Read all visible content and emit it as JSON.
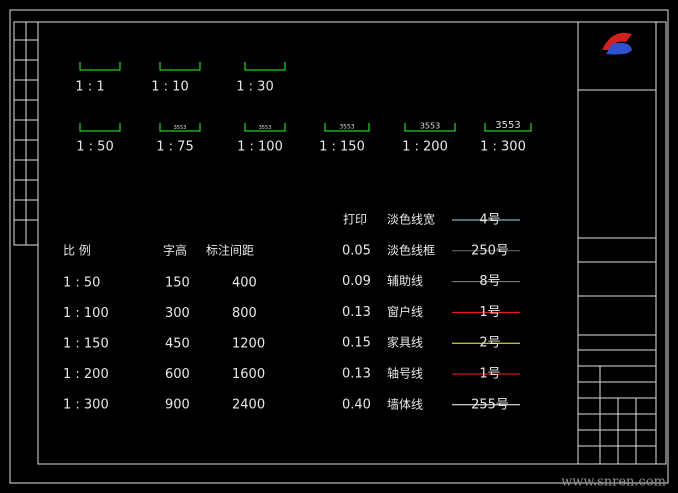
{
  "scales": {
    "row1": [
      "1 : 1",
      "1 : 10",
      "1 : 30"
    ],
    "row2": [
      "1 : 50",
      "1 : 75",
      "1 : 100",
      "1 : 150",
      "1 : 200",
      "1 : 300"
    ],
    "dims": [
      "3553",
      "3553",
      "3553",
      "3553",
      "3553"
    ]
  },
  "table": {
    "header": [
      "比  例",
      "字高",
      "标注间距"
    ],
    "rows": [
      [
        "1 : 50",
        "150",
        "400"
      ],
      [
        "1 : 100",
        "300",
        "800"
      ],
      [
        "1 : 150",
        "450",
        "1200"
      ],
      [
        "1 : 200",
        "600",
        "1600"
      ],
      [
        "1 : 300",
        "900",
        "2400"
      ]
    ]
  },
  "pens": {
    "header": "打印",
    "rows": [
      {
        "name": "淡色线宽",
        "width": null,
        "pen": "4号",
        "color": "#9fe0e0"
      },
      {
        "name": "淡色线框",
        "width": "0.05",
        "pen": "250号",
        "color": "#6a6a6a"
      },
      {
        "name": "辅助线",
        "width": "0.09",
        "pen": "8号",
        "color": "#8a8a8a"
      },
      {
        "name": "窗户线",
        "width": "0.13",
        "pen": "1号",
        "color": "#ff2020"
      },
      {
        "name": "家具线",
        "width": "0.15",
        "pen": "2号",
        "color": "#ffff30"
      },
      {
        "name": "轴号线",
        "width": "0.13",
        "pen": "1号",
        "color": "#ff2020"
      },
      {
        "name": "墙体线",
        "width": "0.40",
        "pen": "255号",
        "color": "#ffffff"
      }
    ]
  },
  "watermark": "www.snren.com"
}
